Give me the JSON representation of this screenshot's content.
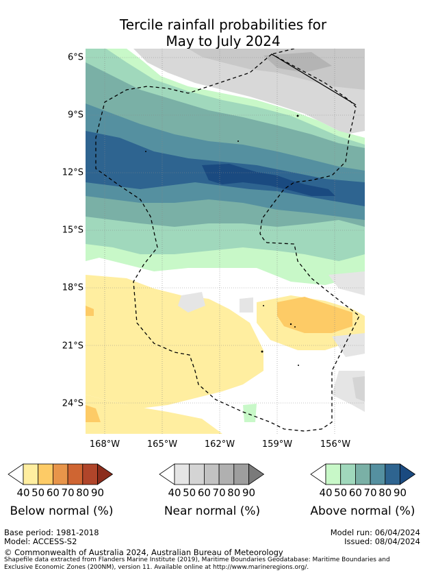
{
  "title": {
    "line1": "Tercile rainfall probabilities for",
    "line2": "May to July 2024"
  },
  "map": {
    "lat_labels": [
      "6°S",
      "9°S",
      "12°S",
      "15°S",
      "18°S",
      "21°S",
      "24°S"
    ],
    "lon_labels": [
      "168°W",
      "165°W",
      "162°W",
      "159°W",
      "156°W"
    ]
  },
  "legends": [
    {
      "name": "Below normal (%)",
      "ticks": [
        "40",
        "50",
        "60",
        "70",
        "80",
        "90"
      ],
      "colors": [
        "#ffffff",
        "#ffeea0",
        "#fdcb66",
        "#e8954a",
        "#cf6532",
        "#b0452a",
        "#8c2d1c"
      ]
    },
    {
      "name": "Near normal (%)",
      "ticks": [
        "40",
        "50",
        "60",
        "70",
        "80",
        "90"
      ],
      "colors": [
        "#ffffff",
        "#e5e5e5",
        "#d4d4d4",
        "#c2c2c2",
        "#b0b0b0",
        "#9e9e9e",
        "#7a7a7a"
      ]
    },
    {
      "name": "Above normal (%)",
      "ticks": [
        "40",
        "50",
        "60",
        "70",
        "80",
        "90"
      ],
      "colors": [
        "#ffffff",
        "#c8f8c8",
        "#a0d8bc",
        "#7ab0a6",
        "#5590a0",
        "#2e6490",
        "#1a4a80"
      ]
    }
  ],
  "footer": {
    "base_period": "Base period: 1981-2018",
    "model": "Model: ACCESS-S2",
    "model_run": "Model run: 06/04/2024",
    "issued": "Issued: 08/04/2024",
    "copyright": "© Commonwealth of Australia 2024, Australian Bureau of Meteorology",
    "shapefile_line1": "Shapefile data extracted from Flanders Marine Institute (2019), Maritime Boundaries Geodatabase: Maritime Boundaries and",
    "shapefile_line2": "Exclusive Economic Zones (200NM), version 11. Available online at http://www.marineregions.org/."
  }
}
